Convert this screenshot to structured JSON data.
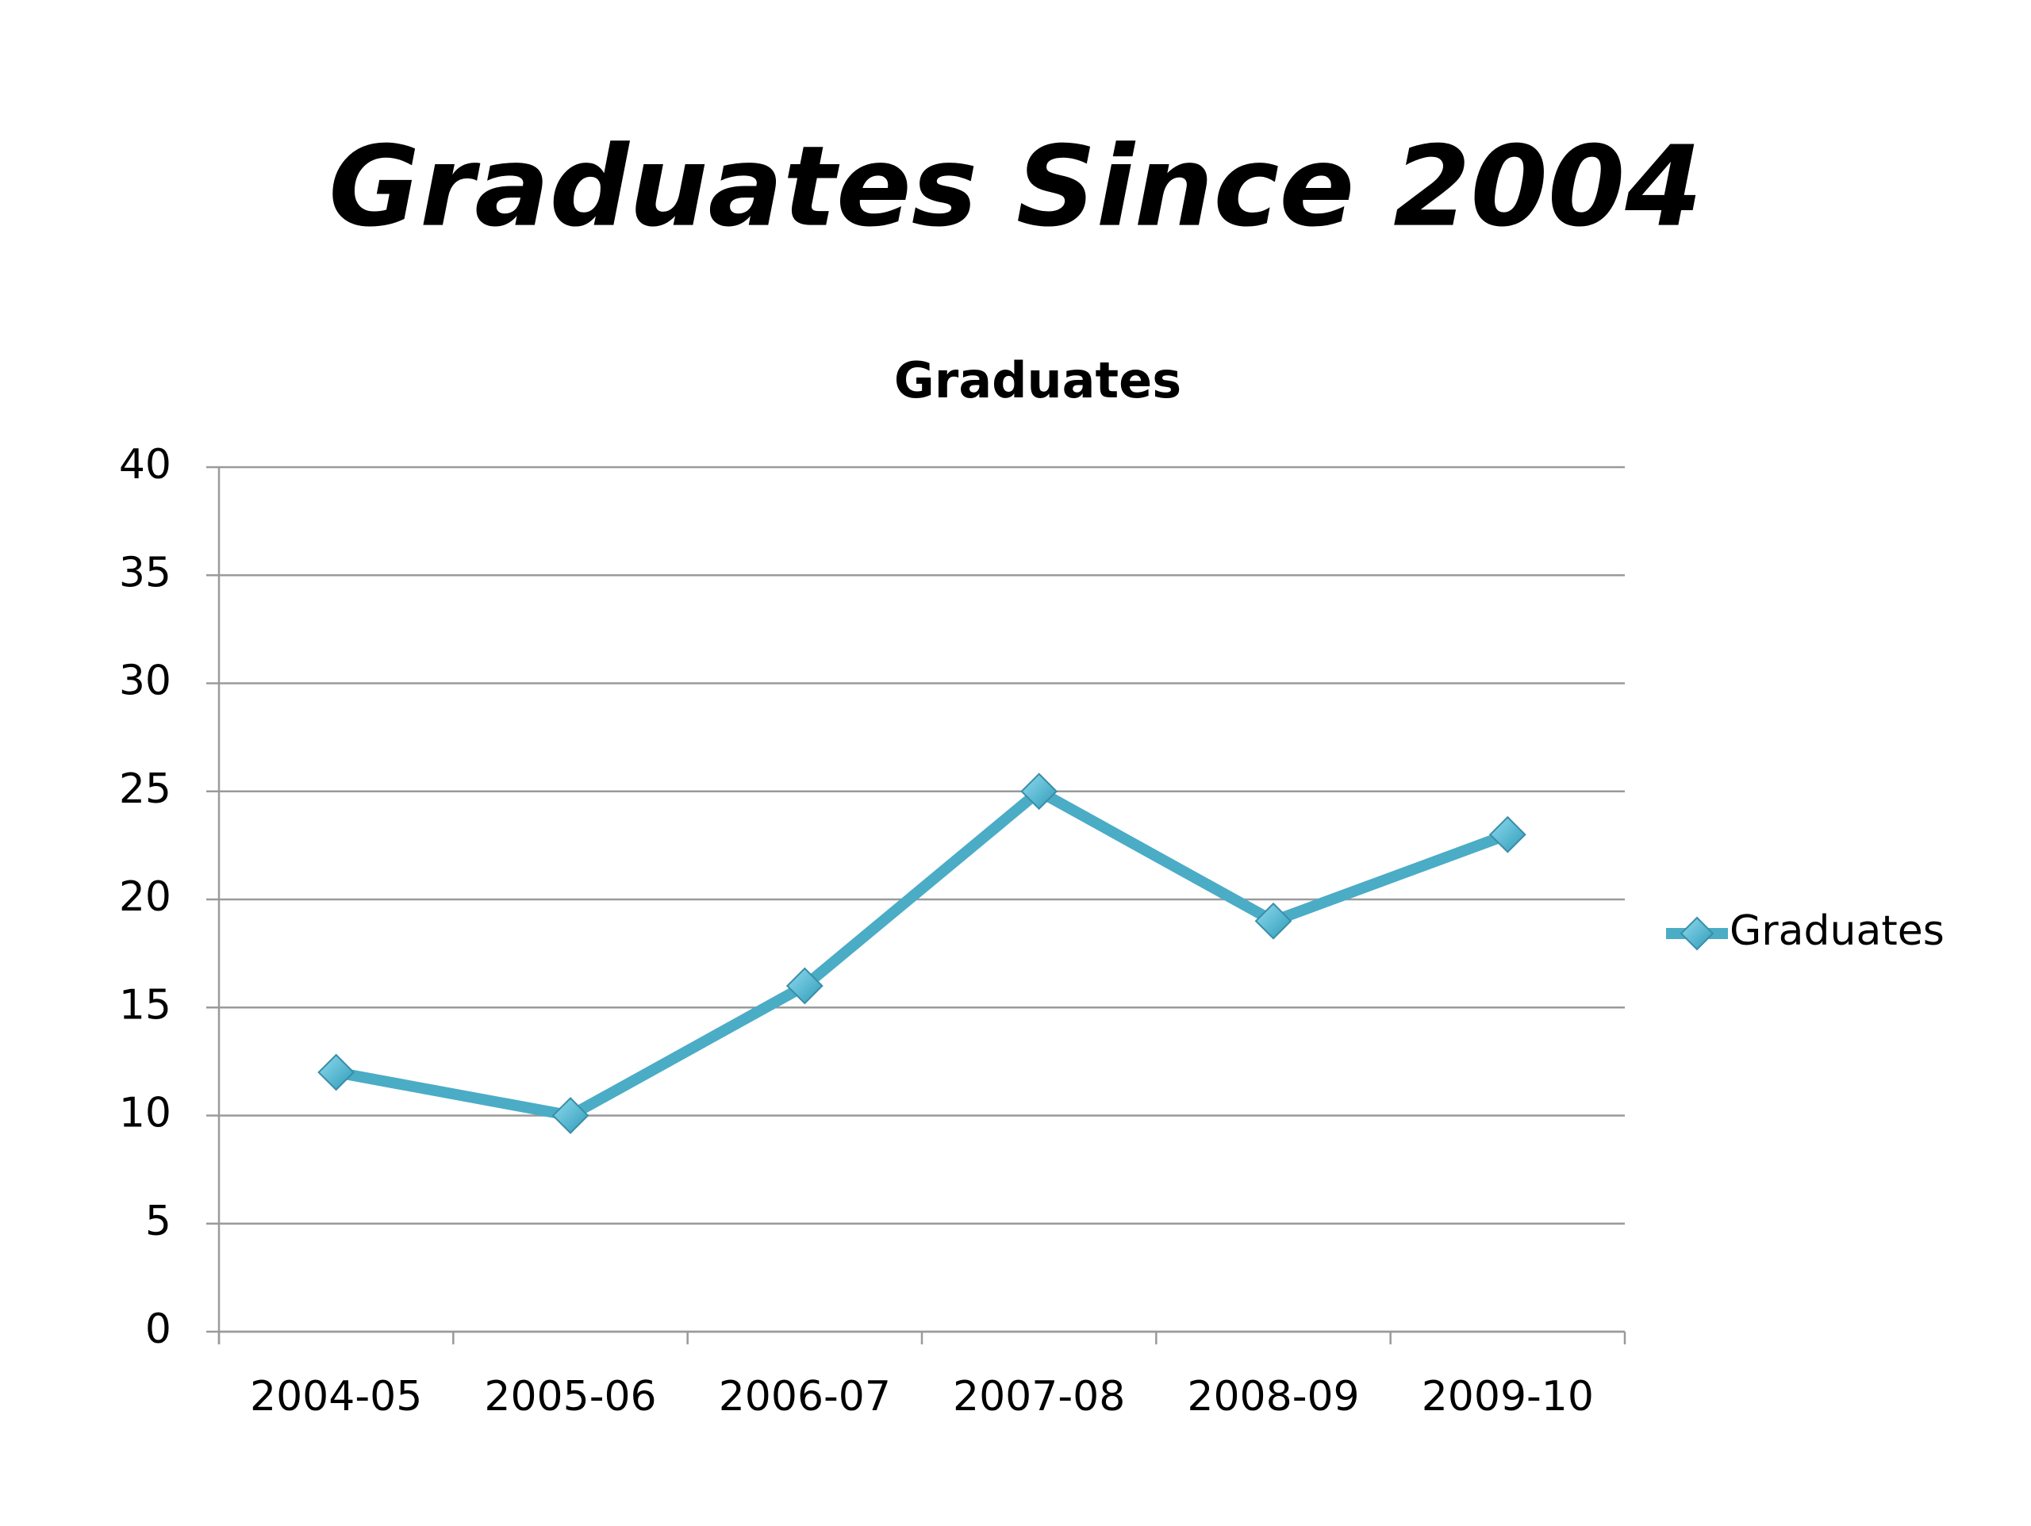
{
  "slide_title": "Graduates Since 2004",
  "chart_data": {
    "type": "line",
    "title": "Graduates",
    "categories": [
      "2004-05",
      "2005-06",
      "2006-07",
      "2007-08",
      "2008-09",
      "2009-10"
    ],
    "series": [
      {
        "name": "Graduates",
        "color": "#4bacc6",
        "values": [
          12,
          10,
          16,
          25,
          19,
          23
        ]
      }
    ],
    "ylim": [
      0,
      40
    ],
    "yticks": [
      0,
      5,
      10,
      15,
      20,
      25,
      30,
      35,
      40
    ],
    "grid": true,
    "legend": "right"
  }
}
